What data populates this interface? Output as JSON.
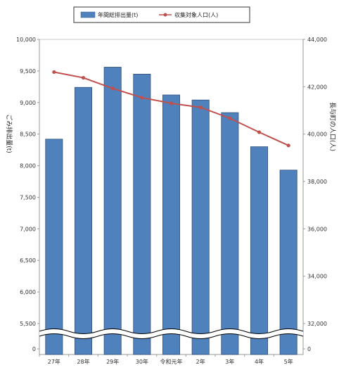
{
  "chart_data": {
    "type": "bar",
    "categories": [
      "27年",
      "28年",
      "29年",
      "30年",
      "令和元年",
      "2年",
      "3年",
      "4年",
      "5年"
    ],
    "series": [
      {
        "name": "年間総排出量(t)",
        "type": "bar",
        "axis": "left",
        "color": "#4f81bd",
        "values": [
          8420,
          9240,
          9560,
          9450,
          9120,
          9040,
          8840,
          8300,
          7930
        ]
      },
      {
        "name": "収集対象人口(人)",
        "type": "line",
        "axis": "right",
        "color": "#c0504d",
        "values": [
          42620,
          42380,
          41930,
          41540,
          41300,
          41130,
          40670,
          40080,
          39520
        ]
      }
    ],
    "y_left": {
      "label": "ごみ排出量(t)",
      "ticks": [
        "0",
        "5,500",
        "6,000",
        "6,500",
        "7,000",
        "7,500",
        "8,000",
        "8,500",
        "9,000",
        "9,500",
        "10,000"
      ],
      "range": [
        5500,
        10000
      ],
      "axis_break": true
    },
    "y_right": {
      "label": "長与町の人口(人)",
      "ticks": [
        "0",
        "32,000",
        "34,000",
        "36,000",
        "38,000",
        "40,000",
        "42,000",
        "44,000"
      ],
      "range": [
        32000,
        44000
      ],
      "axis_break": true
    },
    "legend_position": "top",
    "grid": false
  }
}
